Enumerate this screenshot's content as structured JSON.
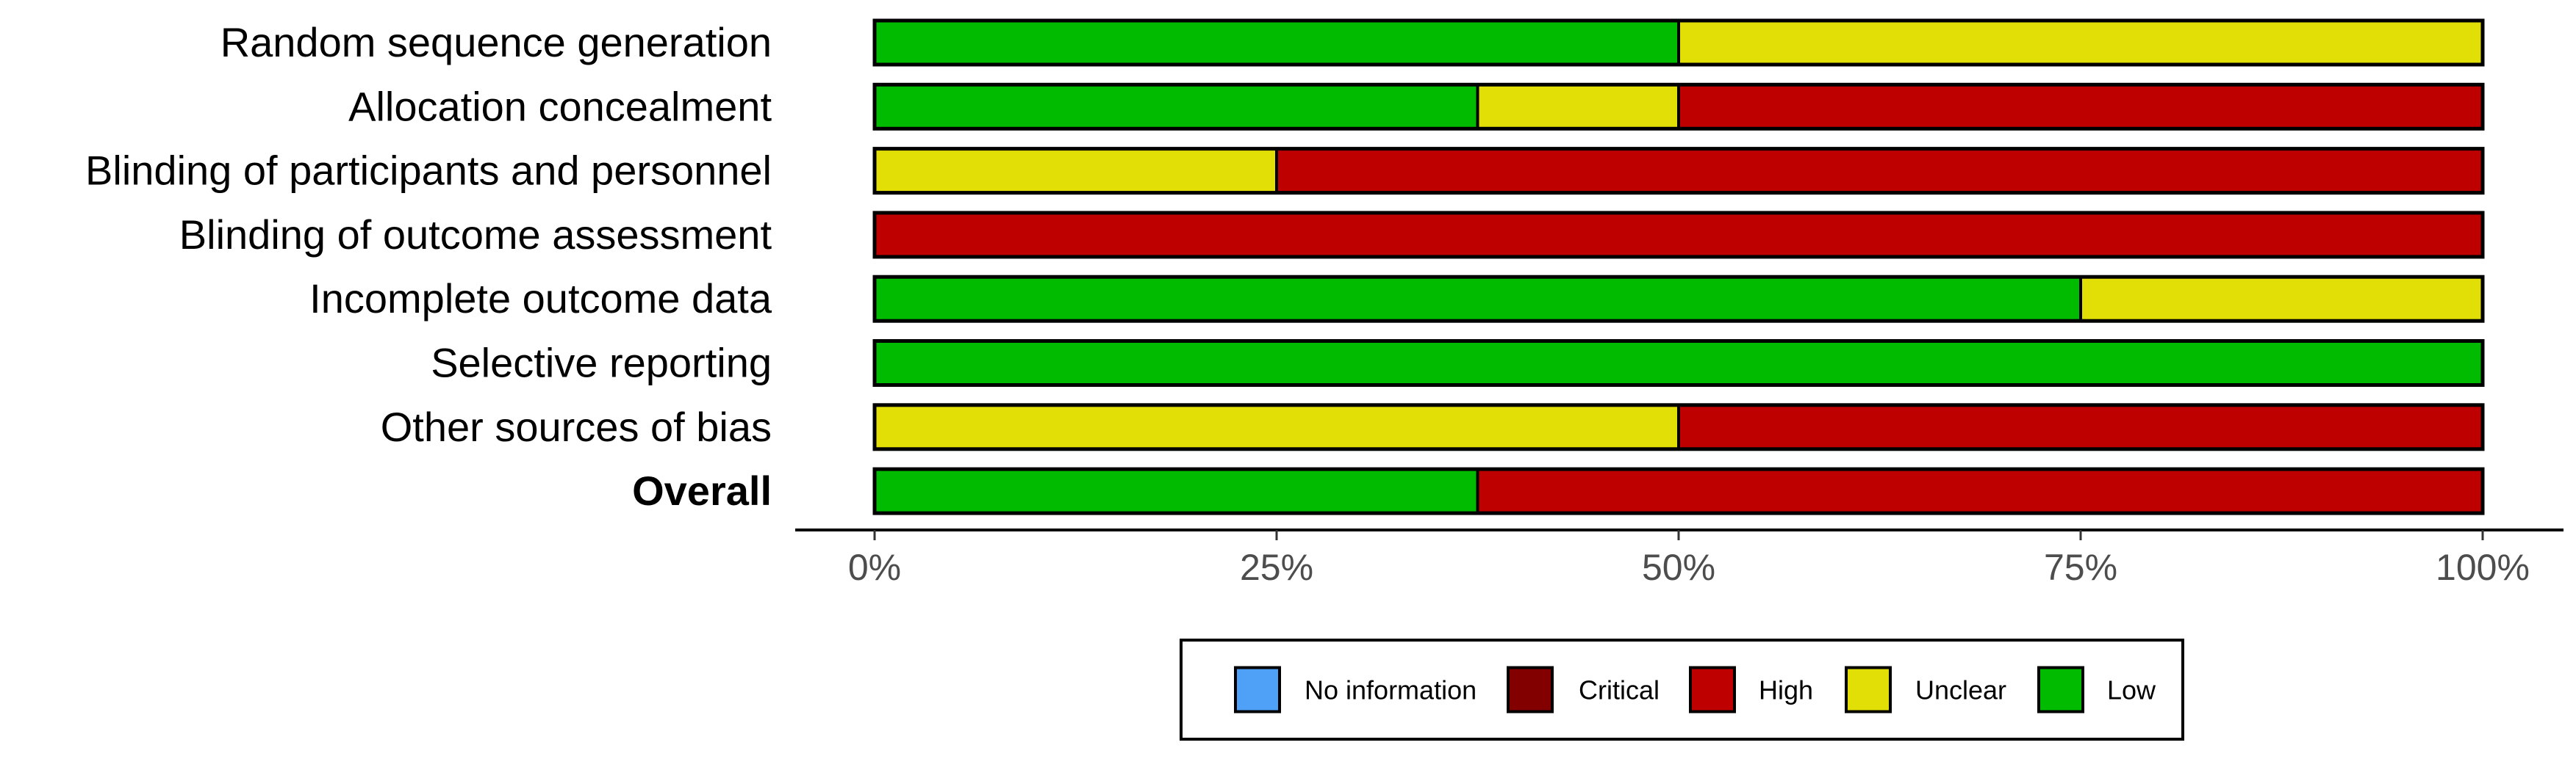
{
  "chart_data": {
    "type": "bar",
    "orientation": "horizontal",
    "stacked": true,
    "categories": [
      "Random sequence generation",
      "Allocation concealment",
      "Blinding of participants and personnel",
      "Blinding of outcome assessment",
      "Incomplete outcome data",
      "Selective reporting",
      "Other sources of bias",
      "Overall"
    ],
    "bold_categories": [
      "Overall"
    ],
    "series": [
      {
        "name": "Low",
        "color": "#00BB00",
        "values": [
          50,
          37.5,
          0,
          0,
          75,
          100,
          0,
          37.5
        ]
      },
      {
        "name": "Unclear",
        "color": "#E2DF07",
        "values": [
          50,
          12.5,
          25,
          0,
          25,
          0,
          50,
          0
        ]
      },
      {
        "name": "High",
        "color": "#BF0000",
        "values": [
          0,
          50,
          75,
          100,
          0,
          0,
          50,
          62.5
        ]
      },
      {
        "name": "Critical",
        "color": "#820000",
        "values": [
          0,
          0,
          0,
          0,
          0,
          0,
          0,
          0
        ]
      },
      {
        "name": "No information",
        "color": "#4EA1F7",
        "values": [
          0,
          0,
          0,
          0,
          0,
          0,
          0,
          0
        ]
      }
    ],
    "stack_order": [
      "Low",
      "Unclear",
      "High",
      "Critical",
      "No information"
    ],
    "legend_order": [
      "No information",
      "Critical",
      "High",
      "Unclear",
      "Low"
    ],
    "legend_position": "bottom",
    "x_ticks": [
      0,
      25,
      50,
      75,
      100
    ],
    "x_tick_labels": [
      "0%",
      "25%",
      "50%",
      "75%",
      "100%"
    ],
    "xlim": [
      0,
      100
    ],
    "grid": false,
    "title": "",
    "xlabel": "",
    "ylabel": ""
  }
}
